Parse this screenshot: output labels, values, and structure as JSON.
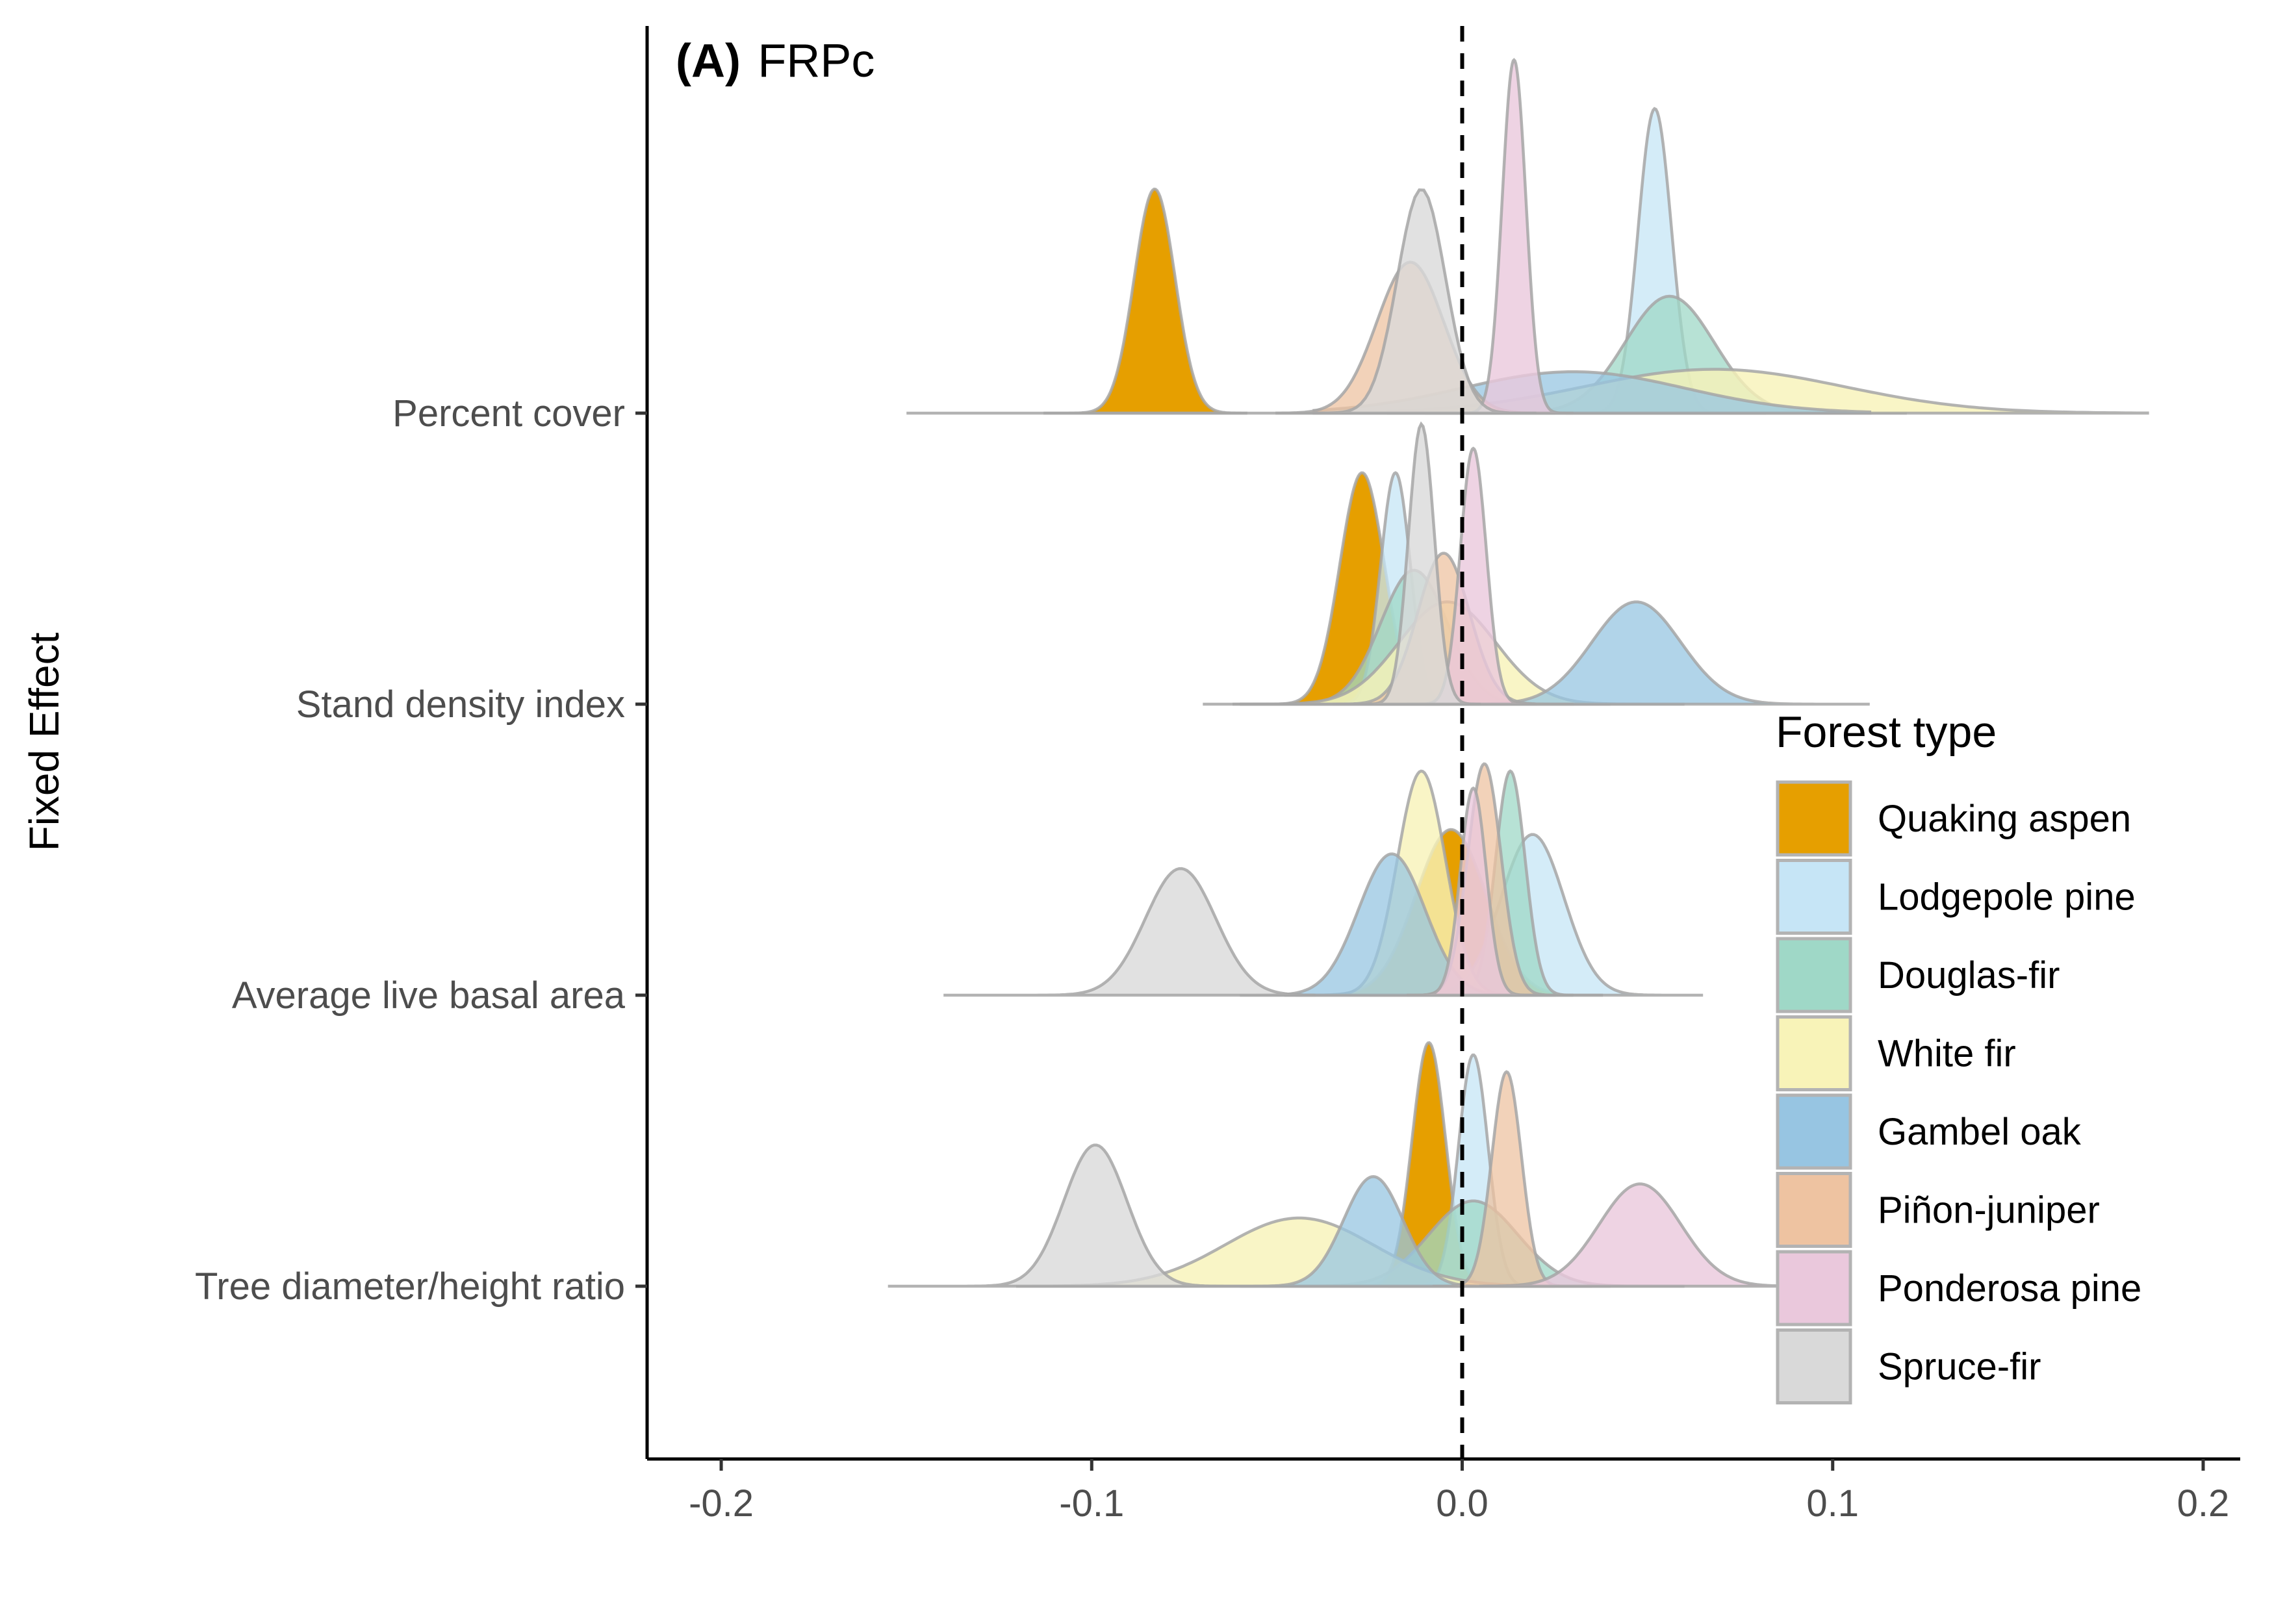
{
  "chart_data": {
    "type": "ridgeline",
    "panel_tag": "(A)",
    "panel_title": "FRPc",
    "xlabel": "",
    "ylabel": "Fixed Effect",
    "xlim": [
      -0.22,
      0.21
    ],
    "x_ticks": [
      -0.2,
      -0.1,
      0.0,
      0.1,
      0.2
    ],
    "x_tick_labels": [
      "-0.2",
      "-0.1",
      "0.0",
      "0.1",
      "0.2"
    ],
    "reference_line": {
      "x": 0,
      "style": "dashed"
    },
    "categories": [
      "Percent cover",
      "Stand density index",
      "Average live basal area",
      "Tree diameter/height ratio"
    ],
    "legend": {
      "title": "Forest type",
      "position": "right",
      "items": [
        {
          "name": "Quaking aspen",
          "color": "#E69F00"
        },
        {
          "name": "Lodgepole pine",
          "color": "#C6E5F6"
        },
        {
          "name": "Douglas-fir",
          "color": "#9FD8C7"
        },
        {
          "name": "White fir",
          "color": "#F8F3B8"
        },
        {
          "name": "Gambel oak",
          "color": "#97C5E2"
        },
        {
          "name": "Piñon-juniper",
          "color": "#EEC3A1"
        },
        {
          "name": "Ponderosa pine",
          "color": "#EAC8DC"
        },
        {
          "name": "Spruce-fir",
          "color": "#D9D9D9"
        }
      ]
    },
    "series": [
      {
        "name": "Quaking aspen",
        "color": "#E69F00",
        "alpha": 1.0,
        "densities": [
          {
            "category": "Percent cover",
            "mean": -0.083,
            "sd": 0.0055,
            "peak": 0.92,
            "range": [
              -0.113,
              -0.058
            ]
          },
          {
            "category": "Stand density index",
            "mean": -0.027,
            "sd": 0.006,
            "peak": 0.95,
            "range": [
              -0.062,
              -0.004
            ]
          },
          {
            "category": "Average live basal area",
            "mean": -0.003,
            "sd": 0.0095,
            "peak": 0.68,
            "range": [
              -0.048,
              0.025
            ]
          },
          {
            "category": "Tree diameter/height ratio",
            "mean": -0.009,
            "sd": 0.0045,
            "peak": 1.0,
            "range": [
              -0.033,
              0.012
            ]
          }
        ]
      },
      {
        "name": "Lodgepole pine",
        "color": "#C6E5F6",
        "alpha": 0.75,
        "densities": [
          {
            "category": "Percent cover",
            "mean": 0.052,
            "sd": 0.0045,
            "peak": 1.25,
            "range": [
              0.028,
              0.082
            ]
          },
          {
            "category": "Stand density index",
            "mean": -0.018,
            "sd": 0.004,
            "peak": 0.95,
            "range": [
              -0.04,
              0.0
            ]
          },
          {
            "category": "Average live basal area",
            "mean": 0.019,
            "sd": 0.0085,
            "peak": 0.66,
            "range": [
              -0.025,
              0.065
            ]
          },
          {
            "category": "Tree diameter/height ratio",
            "mean": 0.003,
            "sd": 0.004,
            "peak": 0.95,
            "range": [
              -0.02,
              0.025
            ]
          }
        ]
      },
      {
        "name": "Douglas-fir",
        "color": "#9FD8C7",
        "alpha": 0.75,
        "densities": [
          {
            "category": "Percent cover",
            "mean": 0.056,
            "sd": 0.012,
            "peak": 0.48,
            "range": [
              -0.01,
              0.12
            ]
          },
          {
            "category": "Stand density index",
            "mean": -0.013,
            "sd": 0.009,
            "peak": 0.55,
            "range": [
              -0.06,
              0.04
            ]
          },
          {
            "category": "Average live basal area",
            "mean": 0.013,
            "sd": 0.004,
            "peak": 0.92,
            "range": [
              -0.01,
              0.038
            ]
          },
          {
            "category": "Tree diameter/height ratio",
            "mean": 0.003,
            "sd": 0.012,
            "peak": 0.35,
            "range": [
              -0.06,
              0.06
            ]
          }
        ]
      },
      {
        "name": "White fir",
        "color": "#F8F3B8",
        "alpha": 0.8,
        "densities": [
          {
            "category": "Percent cover",
            "mean": 0.068,
            "sd": 0.035,
            "peak": 0.18,
            "range": [
              -0.02,
              0.185
            ]
          },
          {
            "category": "Stand density index",
            "mean": -0.004,
            "sd": 0.013,
            "peak": 0.42,
            "range": [
              -0.06,
              0.06
            ]
          },
          {
            "category": "Average live basal area",
            "mean": -0.011,
            "sd": 0.0065,
            "peak": 0.92,
            "range": [
              -0.045,
              0.02
            ]
          },
          {
            "category": "Tree diameter/height ratio",
            "mean": -0.044,
            "sd": 0.02,
            "peak": 0.28,
            "range": [
              -0.12,
              0.04
            ]
          }
        ]
      },
      {
        "name": "Gambel oak",
        "color": "#97C5E2",
        "alpha": 0.75,
        "densities": [
          {
            "category": "Percent cover",
            "mean": 0.03,
            "sd": 0.03,
            "peak": 0.17,
            "range": [
              -0.04,
              0.11
            ]
          },
          {
            "category": "Stand density index",
            "mean": 0.047,
            "sd": 0.012,
            "peak": 0.42,
            "range": [
              -0.01,
              0.11
            ]
          },
          {
            "category": "Average live basal area",
            "mean": -0.019,
            "sd": 0.009,
            "peak": 0.58,
            "range": [
              -0.06,
              0.02
            ]
          },
          {
            "category": "Tree diameter/height ratio",
            "mean": -0.024,
            "sd": 0.008,
            "peak": 0.45,
            "range": [
              -0.06,
              0.01
            ]
          }
        ]
      },
      {
        "name": "Piñon-juniper",
        "color": "#EEC3A1",
        "alpha": 0.75,
        "densities": [
          {
            "category": "Percent cover",
            "mean": -0.014,
            "sd": 0.009,
            "peak": 0.62,
            "range": [
              -0.05,
              0.025
            ]
          },
          {
            "category": "Stand density index",
            "mean": -0.005,
            "sd": 0.007,
            "peak": 0.62,
            "range": [
              -0.035,
              0.03
            ]
          },
          {
            "category": "Average live basal area",
            "mean": 0.006,
            "sd": 0.0045,
            "peak": 0.95,
            "range": [
              -0.015,
              0.03
            ]
          },
          {
            "category": "Tree diameter/height ratio",
            "mean": 0.012,
            "sd": 0.004,
            "peak": 0.88,
            "range": [
              -0.008,
              0.035
            ]
          }
        ]
      },
      {
        "name": "Ponderosa pine",
        "color": "#EAC8DC",
        "alpha": 0.8,
        "densities": [
          {
            "category": "Percent cover",
            "mean": 0.014,
            "sd": 0.0032,
            "peak": 1.45,
            "range": [
              -0.002,
              0.03
            ]
          },
          {
            "category": "Stand density index",
            "mean": 0.003,
            "sd": 0.0035,
            "peak": 1.05,
            "range": [
              -0.015,
              0.02
            ]
          },
          {
            "category": "Average live basal area",
            "mean": 0.003,
            "sd": 0.0035,
            "peak": 0.85,
            "range": [
              -0.015,
              0.025
            ]
          },
          {
            "category": "Tree diameter/height ratio",
            "mean": 0.048,
            "sd": 0.011,
            "peak": 0.42,
            "range": [
              0.005,
              0.1
            ]
          }
        ]
      },
      {
        "name": "Spruce-fir",
        "color": "#D9D9D9",
        "alpha": 0.8,
        "densities": [
          {
            "category": "Percent cover",
            "mean": -0.011,
            "sd": 0.0065,
            "peak": 0.92,
            "range": [
              -0.15,
              0.02
            ]
          },
          {
            "category": "Stand density index",
            "mean": -0.011,
            "sd": 0.0035,
            "peak": 1.15,
            "range": [
              -0.07,
              0.005
            ]
          },
          {
            "category": "Average live basal area",
            "mean": -0.076,
            "sd": 0.0095,
            "peak": 0.52,
            "range": [
              -0.14,
              -0.04
            ]
          },
          {
            "category": "Tree diameter/height ratio",
            "mean": -0.099,
            "sd": 0.0085,
            "peak": 0.58,
            "range": [
              -0.155,
              -0.06
            ]
          }
        ]
      }
    ]
  }
}
